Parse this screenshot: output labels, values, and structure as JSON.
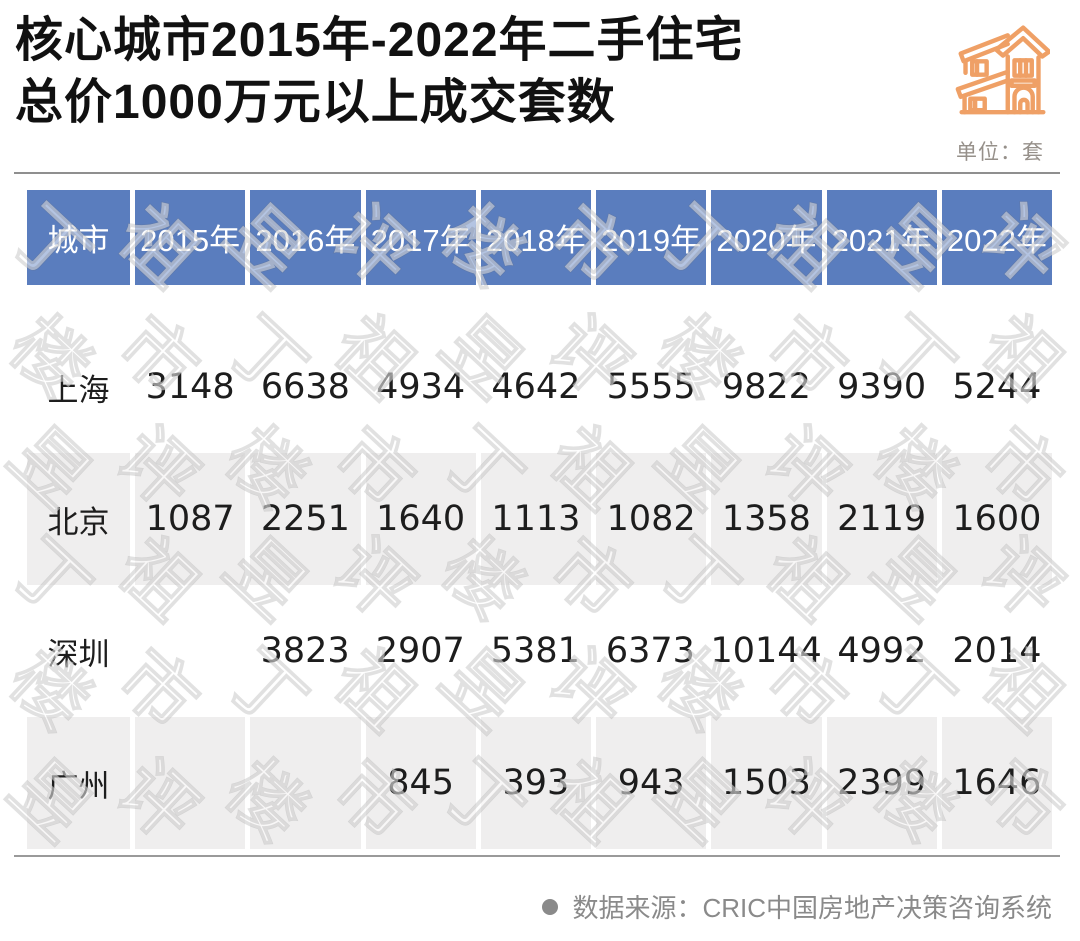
{
  "title": {
    "line1": "核心城市2015年-2022年二手住宅",
    "line2": "总价1000万元以上成交套数"
  },
  "unit_label": "单位：套",
  "table": {
    "columns": [
      "城市",
      "2015年",
      "2016年",
      "2017年",
      "2018年",
      "2019年",
      "2020年",
      "2021年",
      "2022年"
    ],
    "rows": [
      {
        "city": "上海",
        "values": [
          "3148",
          "6638",
          "4934",
          "4642",
          "5555",
          "9822",
          "9390",
          "5244"
        ]
      },
      {
        "city": "北京",
        "values": [
          "1087",
          "2251",
          "1640",
          "1113",
          "1082",
          "1358",
          "2119",
          "1600"
        ]
      },
      {
        "city": "深圳",
        "values": [
          "",
          "3823",
          "2907",
          "5381",
          "6373",
          "10144",
          "4992",
          "2014"
        ]
      },
      {
        "city": "广州",
        "values": [
          "",
          "",
          "845",
          "393",
          "943",
          "1503",
          "2399",
          "1646"
        ]
      }
    ]
  },
  "source": {
    "text": "数据来源：CRIC中国房地产决策咨询系统"
  },
  "watermark": {
    "text": "丁祖昱评楼市"
  },
  "colors": {
    "header_bg": "#5A7DBE",
    "stripe_row_bg": "#EFEEEE",
    "accent_orange": "#EFA066",
    "title_text": "#111111",
    "body_text": "#1D1D1D",
    "source_gray": "#8A8A8A",
    "unit_gray": "#96908A"
  },
  "chart_data": {
    "type": "table",
    "title": "核心城市2015年-2022年二手住宅总价1000万元以上成交套数",
    "unit": "套",
    "categories": [
      "2015年",
      "2016年",
      "2017年",
      "2018年",
      "2019年",
      "2020年",
      "2021年",
      "2022年"
    ],
    "series": [
      {
        "name": "上海",
        "values": [
          3148,
          6638,
          4934,
          4642,
          5555,
          9822,
          9390,
          5244
        ]
      },
      {
        "name": "北京",
        "values": [
          1087,
          2251,
          1640,
          1113,
          1082,
          1358,
          2119,
          1600
        ]
      },
      {
        "name": "深圳",
        "values": [
          null,
          3823,
          2907,
          5381,
          6373,
          10144,
          4992,
          2014
        ]
      },
      {
        "name": "广州",
        "values": [
          null,
          null,
          845,
          393,
          943,
          1503,
          2399,
          1646
        ]
      }
    ],
    "source": "CRIC中国房地产决策咨询系统"
  }
}
